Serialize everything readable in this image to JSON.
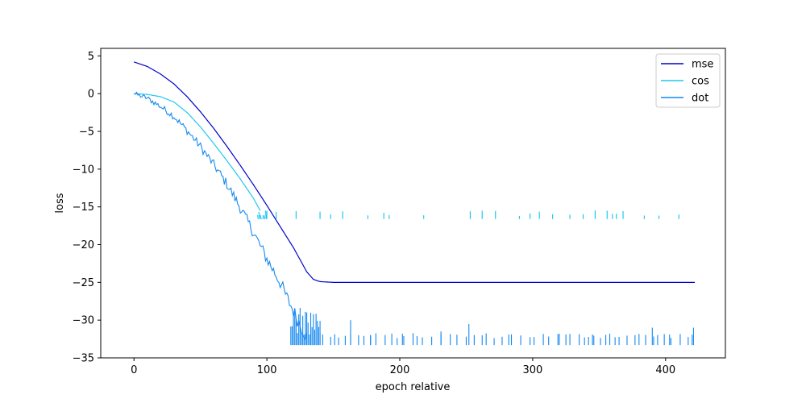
{
  "chart_data": {
    "type": "line",
    "title": "",
    "xlabel": "epoch relative",
    "ylabel": "loss",
    "xlim": [
      -25,
      445
    ],
    "ylim": [
      -35,
      6
    ],
    "xticks": [
      0,
      100,
      200,
      300,
      400
    ],
    "yticks": [
      5,
      0,
      -5,
      -10,
      -15,
      -20,
      -25,
      -30,
      -35
    ],
    "xtick_labels": [
      "0",
      "100",
      "200",
      "300",
      "400"
    ],
    "ytick_labels": [
      "5",
      "0",
      "−5",
      "−10",
      "−15",
      "−20",
      "−25",
      "−30",
      "−35"
    ],
    "grid": false,
    "legend_position": "top-right",
    "series": [
      {
        "name": "mse",
        "color": "#0000cd",
        "style": "smooth",
        "points": [
          [
            0,
            4.2
          ],
          [
            10,
            3.6
          ],
          [
            20,
            2.6
          ],
          [
            30,
            1.3
          ],
          [
            40,
            -0.4
          ],
          [
            50,
            -2.4
          ],
          [
            60,
            -4.6
          ],
          [
            70,
            -7.0
          ],
          [
            80,
            -9.5
          ],
          [
            90,
            -12.1
          ],
          [
            100,
            -14.8
          ],
          [
            110,
            -17.6
          ],
          [
            120,
            -20.4
          ],
          [
            125,
            -22.0
          ],
          [
            130,
            -23.6
          ],
          [
            135,
            -24.6
          ],
          [
            140,
            -24.9
          ],
          [
            150,
            -25.0
          ],
          [
            200,
            -25.0
          ],
          [
            250,
            -25.0
          ],
          [
            300,
            -25.0
          ],
          [
            350,
            -25.0
          ],
          [
            400,
            -25.0
          ],
          [
            422,
            -25.0
          ]
        ]
      },
      {
        "name": "cos",
        "color": "#1ec8f0",
        "style": "plateau",
        "points": [
          [
            0,
            0.0
          ],
          [
            10,
            -0.1
          ],
          [
            20,
            -0.4
          ],
          [
            30,
            -1.1
          ],
          [
            40,
            -2.5
          ],
          [
            50,
            -4.4
          ],
          [
            60,
            -6.6
          ],
          [
            70,
            -8.9
          ],
          [
            80,
            -11.3
          ],
          [
            90,
            -13.9
          ],
          [
            95,
            -15.5
          ]
        ],
        "plateau_value": -16.6,
        "plateau_spikes": [
          100,
          107,
          122,
          140,
          148,
          157,
          176,
          188,
          192,
          218,
          253,
          262,
          272,
          290,
          298,
          305,
          315,
          328,
          338,
          347,
          356,
          360,
          363,
          368,
          384,
          395,
          410
        ]
      },
      {
        "name": "dot",
        "color": "#1589f0",
        "style": "noisy-floor",
        "points": [
          [
            0,
            0.0
          ],
          [
            10,
            -0.6
          ],
          [
            20,
            -1.7
          ],
          [
            30,
            -3.0
          ],
          [
            40,
            -4.9
          ],
          [
            50,
            -7.0
          ],
          [
            60,
            -9.4
          ],
          [
            70,
            -12.0
          ],
          [
            80,
            -15.1
          ],
          [
            90,
            -18.4
          ],
          [
            100,
            -21.9
          ],
          [
            110,
            -25.0
          ],
          [
            115,
            -27.0
          ],
          [
            120,
            -28.8
          ],
          [
            125,
            -30.6
          ],
          [
            130,
            -32.2
          ]
        ],
        "floor_value": -33.3,
        "floor_spikes": [
          [
            140,
            -31.8
          ],
          [
            163,
            -30.0
          ],
          [
            178,
            -32.0
          ],
          [
            202,
            -31.8
          ],
          [
            231,
            -31.5
          ],
          [
            252,
            -30.5
          ],
          [
            282,
            -31.9
          ],
          [
            320,
            -31.8
          ],
          [
            345,
            -31.9
          ],
          [
            358,
            -31.8
          ],
          [
            390,
            -31.0
          ],
          [
            403,
            -31.9
          ],
          [
            421,
            -31.0
          ]
        ]
      }
    ]
  }
}
